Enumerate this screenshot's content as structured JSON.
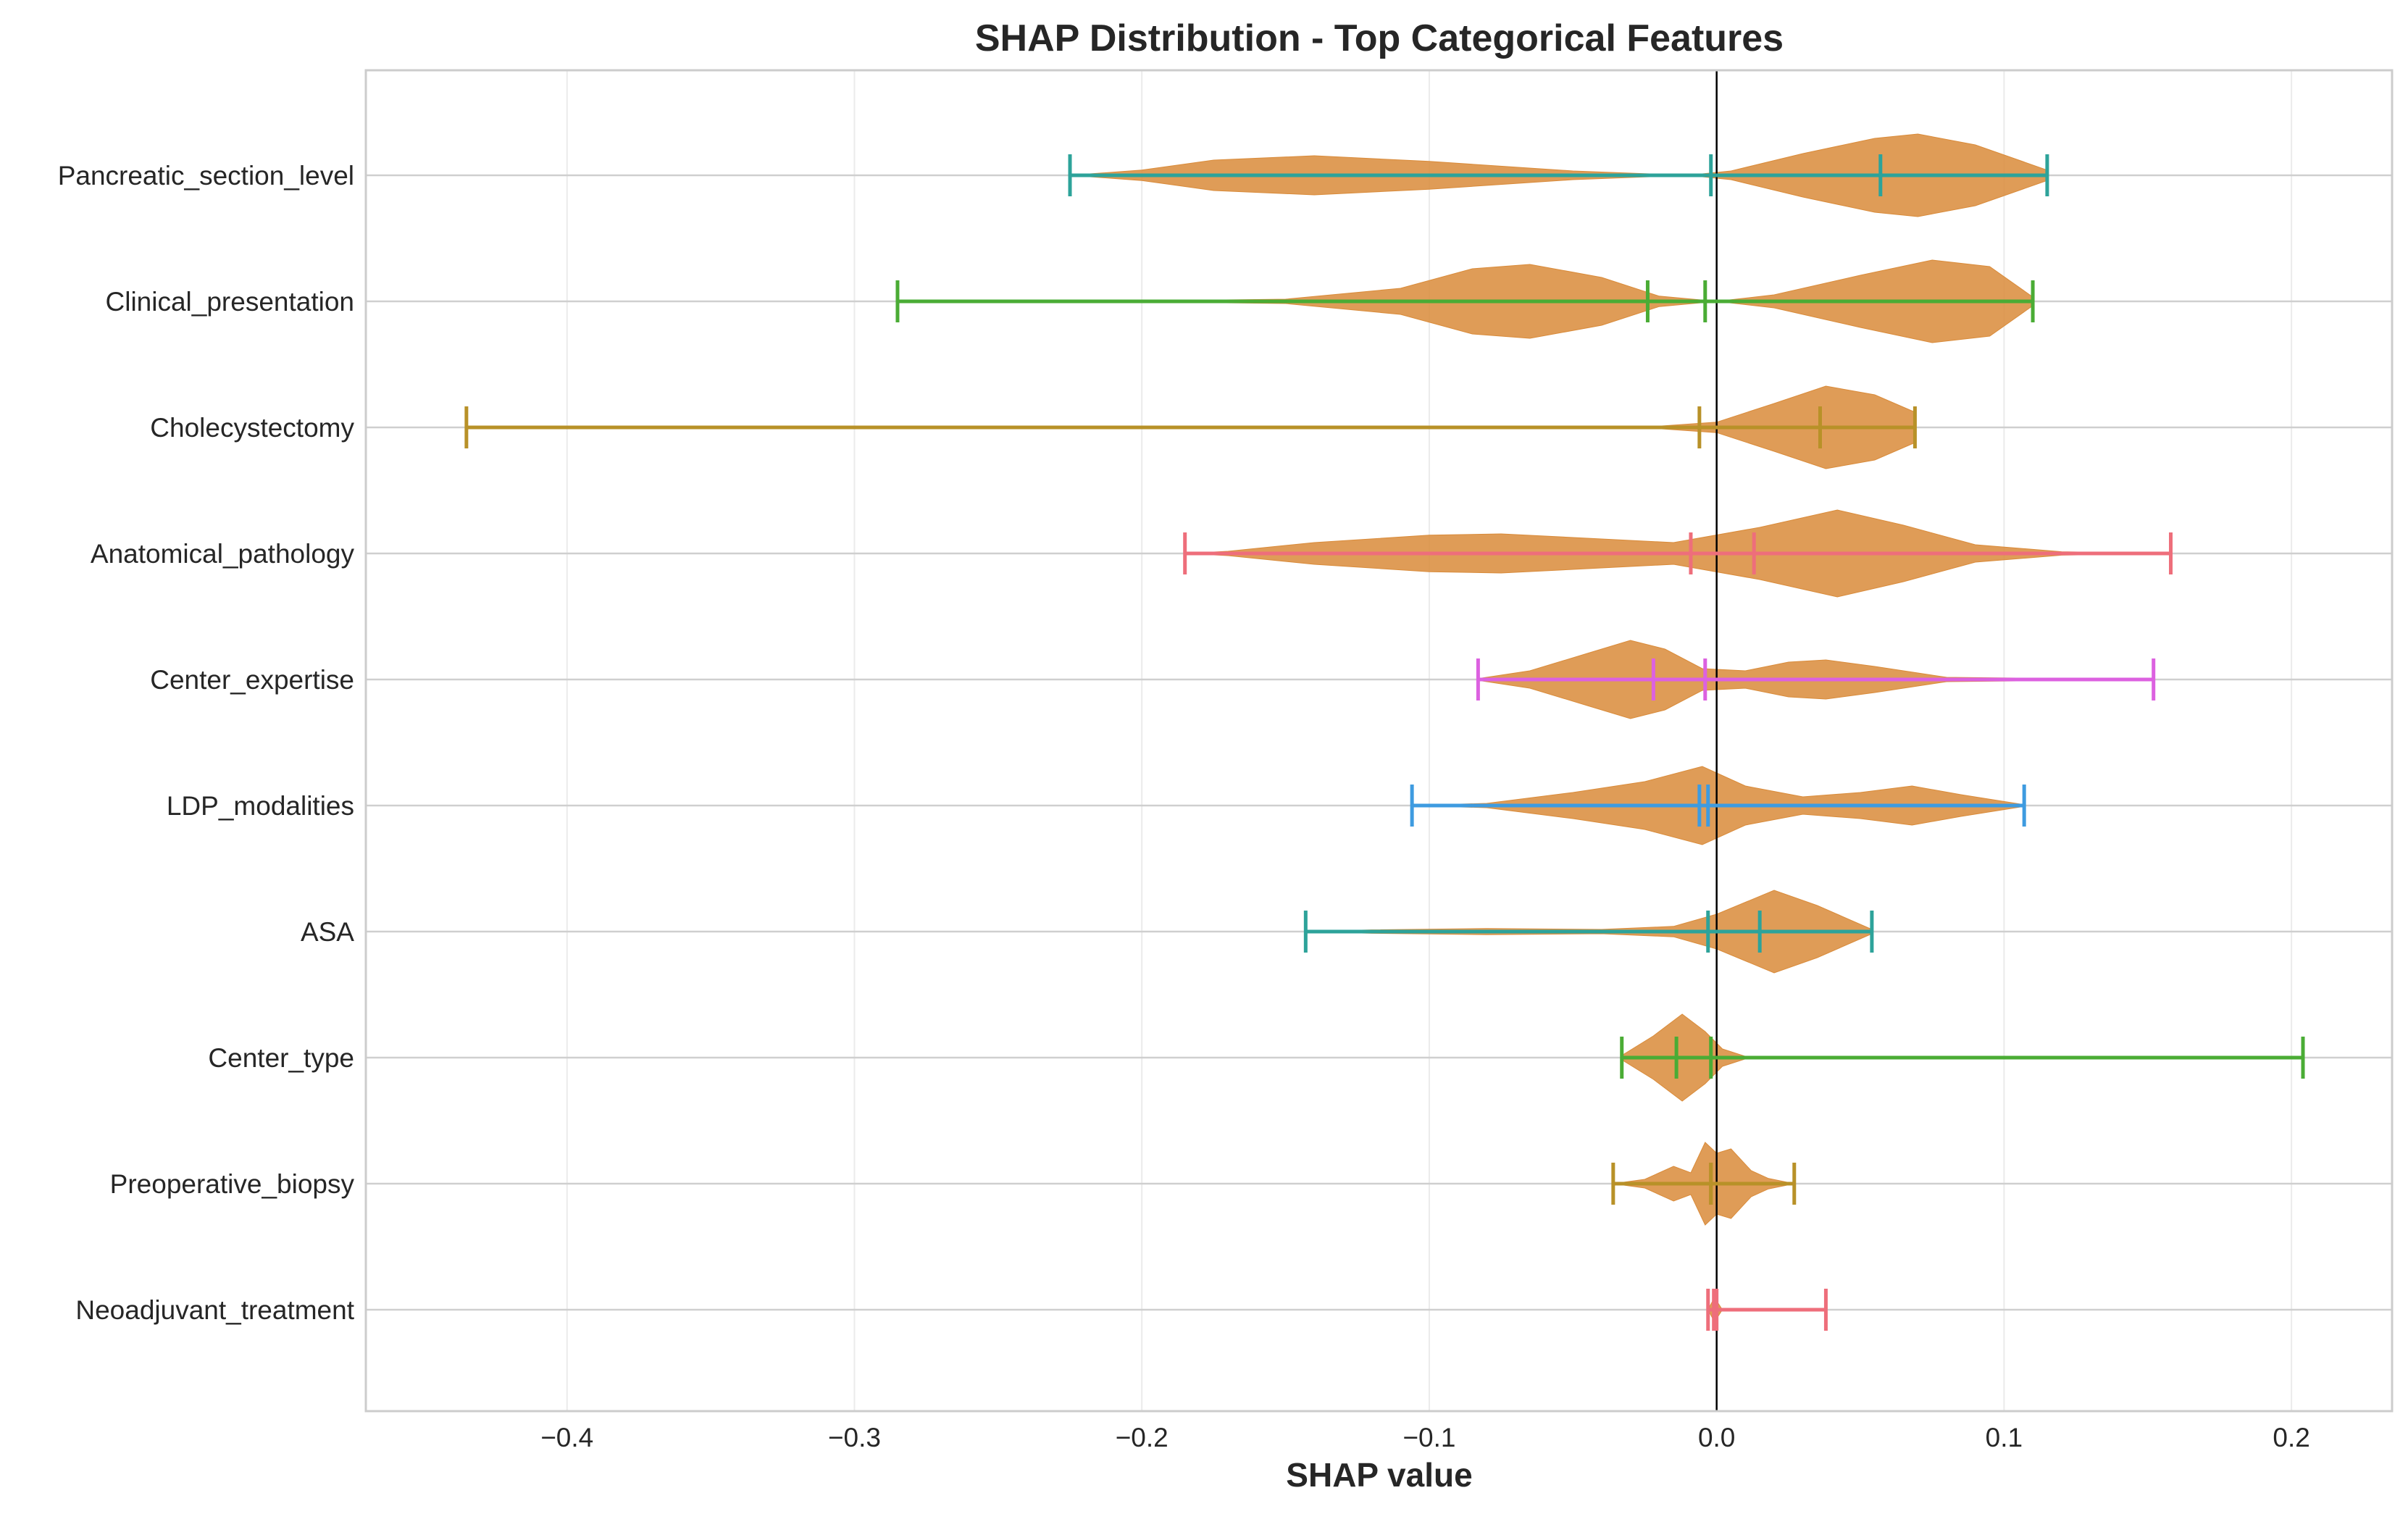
{
  "chart_data": {
    "type": "violin",
    "orientation": "horizontal",
    "title": "SHAP Distribution - Top Categorical Features",
    "xlabel": "SHAP value",
    "ylabel": "",
    "xlim": [
      -0.47,
      0.235
    ],
    "xticks": [
      -0.4,
      -0.3,
      -0.2,
      -0.1,
      0.0,
      0.1,
      0.2
    ],
    "xtick_labels": [
      "−0.4",
      "−0.3",
      "−0.2",
      "−0.1",
      "0.0",
      "0.1",
      "0.2"
    ],
    "grid": true,
    "zero_line": 0,
    "violin_color": "#d98b3a",
    "features": [
      {
        "name": "Pancreatic_section_level",
        "min": -0.225,
        "max": 0.115,
        "median": -0.002,
        "mean": 0.057,
        "color": "#2da39a",
        "density": [
          [
            -0.225,
            0.0
          ],
          [
            -0.2,
            0.12
          ],
          [
            -0.175,
            0.35
          ],
          [
            -0.14,
            0.45
          ],
          [
            -0.1,
            0.32
          ],
          [
            -0.05,
            0.1
          ],
          [
            -0.01,
            0.0
          ],
          [
            0.005,
            0.1
          ],
          [
            0.03,
            0.5
          ],
          [
            0.055,
            0.85
          ],
          [
            0.07,
            0.95
          ],
          [
            0.09,
            0.7
          ],
          [
            0.115,
            0.12
          ]
        ]
      },
      {
        "name": "Clinical_presentation",
        "min": -0.285,
        "max": 0.11,
        "median": -0.004,
        "mean": -0.024,
        "color": "#4aac35",
        "density": [
          [
            -0.285,
            0.0
          ],
          [
            -0.2,
            0.01
          ],
          [
            -0.15,
            0.05
          ],
          [
            -0.11,
            0.3
          ],
          [
            -0.085,
            0.75
          ],
          [
            -0.065,
            0.85
          ],
          [
            -0.04,
            0.55
          ],
          [
            -0.02,
            0.12
          ],
          [
            0.0,
            0.0
          ],
          [
            0.02,
            0.15
          ],
          [
            0.05,
            0.6
          ],
          [
            0.075,
            0.95
          ],
          [
            0.095,
            0.8
          ],
          [
            0.11,
            0.1
          ]
        ]
      },
      {
        "name": "Cholecystectomy",
        "min": -0.435,
        "max": 0.069,
        "median": -0.006,
        "mean": 0.036,
        "color": "#b89128",
        "density": [
          [
            -0.435,
            0.0
          ],
          [
            -0.2,
            0.0
          ],
          [
            -0.02,
            0.03
          ],
          [
            0.0,
            0.12
          ],
          [
            0.02,
            0.55
          ],
          [
            0.038,
            0.95
          ],
          [
            0.055,
            0.75
          ],
          [
            0.069,
            0.35
          ]
        ]
      },
      {
        "name": "Anatomical_pathology",
        "min": -0.185,
        "max": 0.158,
        "median": -0.009,
        "mean": 0.013,
        "color": "#ee6e7b",
        "density": [
          [
            -0.185,
            0.0
          ],
          [
            -0.17,
            0.05
          ],
          [
            -0.14,
            0.25
          ],
          [
            -0.1,
            0.42
          ],
          [
            -0.075,
            0.45
          ],
          [
            -0.045,
            0.35
          ],
          [
            -0.015,
            0.25
          ],
          [
            0.015,
            0.6
          ],
          [
            0.042,
            1.0
          ],
          [
            0.065,
            0.65
          ],
          [
            0.09,
            0.2
          ],
          [
            0.12,
            0.04
          ],
          [
            0.158,
            0.0
          ]
        ]
      },
      {
        "name": "Center_expertise",
        "min": -0.083,
        "max": 0.152,
        "median": -0.004,
        "mean": -0.022,
        "color": "#dc61e0",
        "density": [
          [
            -0.083,
            0.02
          ],
          [
            -0.065,
            0.2
          ],
          [
            -0.045,
            0.6
          ],
          [
            -0.03,
            0.9
          ],
          [
            -0.018,
            0.7
          ],
          [
            -0.005,
            0.25
          ],
          [
            0.01,
            0.2
          ],
          [
            0.025,
            0.4
          ],
          [
            0.038,
            0.45
          ],
          [
            0.055,
            0.3
          ],
          [
            0.08,
            0.05
          ],
          [
            0.152,
            0.0
          ]
        ]
      },
      {
        "name": "LDP_modalities",
        "min": -0.106,
        "max": 0.107,
        "median": -0.003,
        "mean": -0.006,
        "color": "#3e9be0",
        "density": [
          [
            -0.106,
            0.0
          ],
          [
            -0.08,
            0.05
          ],
          [
            -0.05,
            0.3
          ],
          [
            -0.025,
            0.55
          ],
          [
            -0.005,
            0.9
          ],
          [
            0.01,
            0.45
          ],
          [
            0.03,
            0.2
          ],
          [
            0.05,
            0.3
          ],
          [
            0.068,
            0.45
          ],
          [
            0.085,
            0.25
          ],
          [
            0.107,
            0.02
          ]
        ]
      },
      {
        "name": "ASA",
        "min": -0.143,
        "max": 0.054,
        "median": -0.003,
        "mean": 0.015,
        "color": "#2da39a",
        "density": [
          [
            -0.143,
            0.0
          ],
          [
            -0.12,
            0.04
          ],
          [
            -0.08,
            0.07
          ],
          [
            -0.04,
            0.05
          ],
          [
            -0.015,
            0.12
          ],
          [
            0.0,
            0.4
          ],
          [
            0.02,
            0.95
          ],
          [
            0.035,
            0.6
          ],
          [
            0.054,
            0.05
          ]
        ]
      },
      {
        "name": "Center_type",
        "min": -0.033,
        "max": 0.204,
        "median": -0.002,
        "mean": -0.014,
        "color": "#4aac35",
        "density": [
          [
            -0.033,
            0.05
          ],
          [
            -0.022,
            0.5
          ],
          [
            -0.012,
            1.0
          ],
          [
            -0.004,
            0.6
          ],
          [
            0.002,
            0.2
          ],
          [
            0.01,
            0.03
          ],
          [
            0.204,
            0.0
          ]
        ]
      },
      {
        "name": "Preoperative_biopsy",
        "min": -0.036,
        "max": 0.027,
        "median": -0.002,
        "mean": -0.002,
        "color": "#b89128",
        "density": [
          [
            -0.036,
            0.0
          ],
          [
            -0.025,
            0.1
          ],
          [
            -0.015,
            0.4
          ],
          [
            -0.009,
            0.25
          ],
          [
            -0.004,
            0.95
          ],
          [
            0.0,
            0.7
          ],
          [
            0.005,
            0.8
          ],
          [
            0.012,
            0.3
          ],
          [
            0.018,
            0.12
          ],
          [
            0.027,
            0.0
          ]
        ]
      },
      {
        "name": "Neoadjuvant_treatment",
        "min": -0.003,
        "max": 0.038,
        "median": -0.001,
        "mean": 0.0,
        "color": "#ee6e7b",
        "density": [
          [
            -0.003,
            0.0
          ],
          [
            -0.001,
            0.25
          ],
          [
            0.0,
            0.2
          ],
          [
            0.002,
            0.0
          ],
          [
            0.038,
            0.0
          ]
        ]
      }
    ]
  }
}
